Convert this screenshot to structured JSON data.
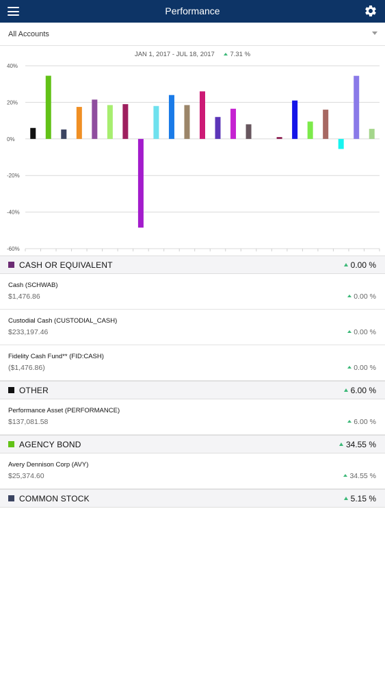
{
  "nav": {
    "title": "Performance",
    "menu_icon": "menu-icon",
    "settings_icon": "gear-icon"
  },
  "account_selector": {
    "selected": "All Accounts"
  },
  "summary": {
    "date_range": "JAN 1, 2017 - JUL 18, 2017",
    "return": "7.31 %",
    "return_color": "#3cb878"
  },
  "chart_data": {
    "type": "bar",
    "y_ticks": [
      "40%",
      "20%",
      "0%",
      "-20%",
      "-40%",
      "-60%"
    ],
    "ylim": [
      -60,
      40
    ],
    "grid": true,
    "bars": [
      {
        "value": 6,
        "color": "#111111"
      },
      {
        "value": 34.55,
        "color": "#62c217"
      },
      {
        "value": 5.15,
        "color": "#3b4461"
      },
      {
        "value": 17.5,
        "color": "#f08f24"
      },
      {
        "value": 21.5,
        "color": "#8f4d9e"
      },
      {
        "value": 18.5,
        "color": "#a7ee6f"
      },
      {
        "value": 19,
        "color": "#9e1f5e"
      },
      {
        "value": -48.5,
        "color": "#a31ccc"
      },
      {
        "value": 18,
        "color": "#6ee1ee"
      },
      {
        "value": 24,
        "color": "#1a7be8"
      },
      {
        "value": 18.5,
        "color": "#9b8569"
      },
      {
        "value": 26,
        "color": "#cc1a75"
      },
      {
        "value": 12,
        "color": "#5c35b8"
      },
      {
        "value": 16.5,
        "color": "#c522d1"
      },
      {
        "value": 8,
        "color": "#67565e"
      },
      {
        "value": 0,
        "color": "#cccccc"
      },
      {
        "value": 1,
        "color": "#8a1a4e"
      },
      {
        "value": 21,
        "color": "#1414e8"
      },
      {
        "value": 9.5,
        "color": "#7cea4a"
      },
      {
        "value": 16,
        "color": "#a76862"
      },
      {
        "value": -5.5,
        "color": "#17f4f0"
      },
      {
        "value": 34.5,
        "color": "#8a7ae8"
      },
      {
        "value": 5.5,
        "color": "#a4d68b"
      }
    ]
  },
  "holdings": {
    "cash": {
      "title": "CASH OR EQUIVALENT",
      "pct": "0.00 %",
      "color": "#6b2b73",
      "items": [
        {
          "name": "Cash (SCHWAB)",
          "amount": "$1,476.86",
          "pct": "0.00 %"
        },
        {
          "name": "Custodial Cash (CUSTODIAL_CASH)",
          "amount": "$233,197.46",
          "pct": "0.00 %"
        },
        {
          "name": "Fidelity Cash Fund** (FID:CASH)",
          "amount": "($1,476.86)",
          "pct": "0.00 %"
        }
      ]
    },
    "other": {
      "title": "OTHER",
      "pct": "6.00 %",
      "color": "#111111",
      "items": [
        {
          "name": "Performance Asset (PERFORMANCE)",
          "amount": "$137,081.58",
          "pct": "6.00 %"
        }
      ]
    },
    "agency_bond": {
      "title": "AGENCY BOND",
      "pct": "34.55 %",
      "color": "#62c217",
      "items": [
        {
          "name": "Avery Dennison Corp (AVY)",
          "amount": "$25,374.60",
          "pct": "34.55 %"
        }
      ]
    },
    "common_stock": {
      "title": "COMMON STOCK",
      "pct": "5.15 %",
      "color": "#3b4461"
    }
  }
}
